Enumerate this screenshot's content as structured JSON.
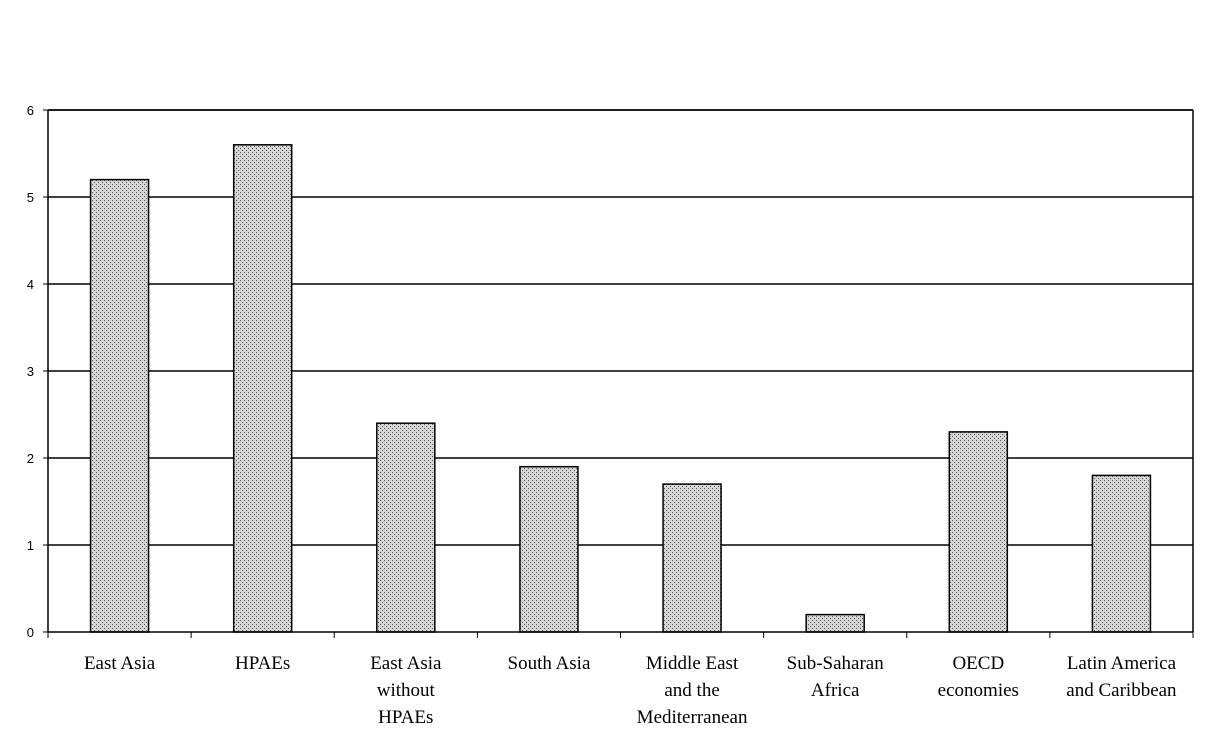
{
  "chart_data": {
    "type": "bar",
    "categories": [
      [
        "East Asia"
      ],
      [
        "HPAEs"
      ],
      [
        "East Asia",
        "without",
        "HPAEs"
      ],
      [
        "South Asia"
      ],
      [
        "Middle East",
        "and the",
        "Mediterranean"
      ],
      [
        "Sub-Saharan",
        "Africa"
      ],
      [
        "OECD",
        "economies"
      ],
      [
        "Latin America",
        "and Caribbean"
      ]
    ],
    "values": [
      5.2,
      5.6,
      2.4,
      1.9,
      1.7,
      0.2,
      2.3,
      1.8
    ],
    "ylim": [
      0,
      6
    ],
    "yticks": [
      "0",
      "1",
      "2",
      "3",
      "4",
      "5",
      "6"
    ],
    "grid": true,
    "title": "",
    "xlabel": "",
    "ylabel": "",
    "colors": {
      "bar_fill": "#c8c8c8",
      "bar_stroke": "#000000",
      "grid": "#000000",
      "axis": "#000000"
    }
  }
}
